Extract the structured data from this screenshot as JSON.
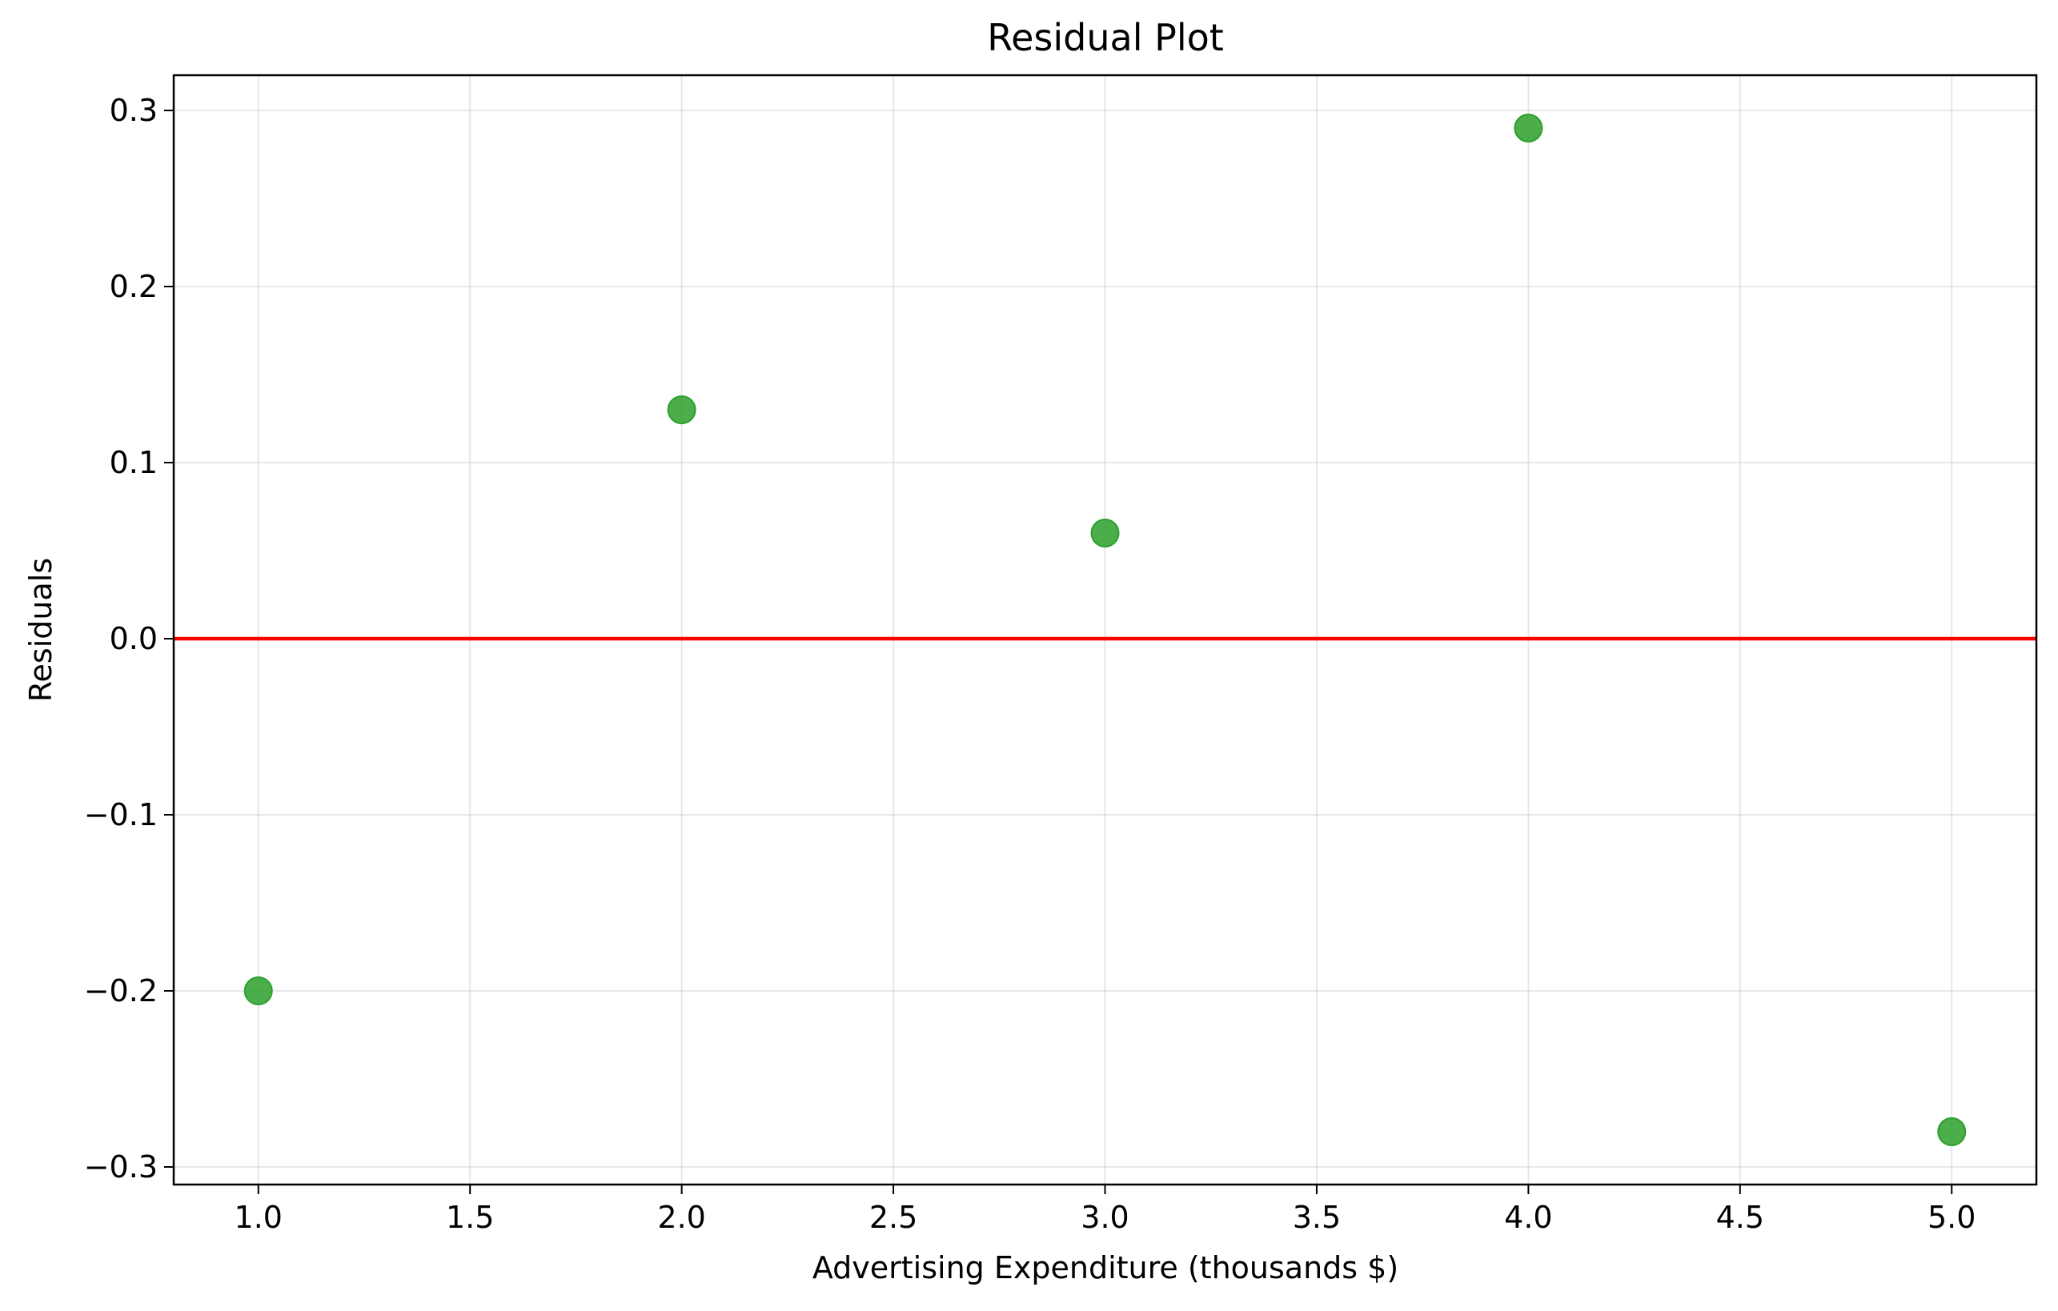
{
  "chart_data": {
    "type": "scatter",
    "title": "Residual Plot",
    "xlabel": "Advertising Expenditure (thousands $)",
    "ylabel": "Residuals",
    "xlim": [
      0.8,
      5.2
    ],
    "ylim": [
      -0.31,
      0.32
    ],
    "xticks": [
      1.0,
      1.5,
      2.0,
      2.5,
      3.0,
      3.5,
      4.0,
      4.5,
      5.0
    ],
    "xtick_labels": [
      "1.0",
      "1.5",
      "2.0",
      "2.5",
      "3.0",
      "3.5",
      "4.0",
      "4.5",
      "5.0"
    ],
    "yticks": [
      -0.3,
      -0.2,
      -0.1,
      0.0,
      0.1,
      0.2,
      0.3
    ],
    "ytick_labels": [
      "−0.3",
      "−0.2",
      "−0.1",
      "0.0",
      "0.1",
      "0.2",
      "0.3"
    ],
    "grid": true,
    "series": [
      {
        "x": [
          1.0,
          2.0,
          3.0,
          4.0,
          5.0
        ],
        "y": [
          -0.2,
          0.13,
          0.06,
          0.29,
          -0.28
        ],
        "color": "#2ca02c"
      }
    ],
    "reference_line": {
      "y": 0.0,
      "color": "#ff0000"
    }
  }
}
